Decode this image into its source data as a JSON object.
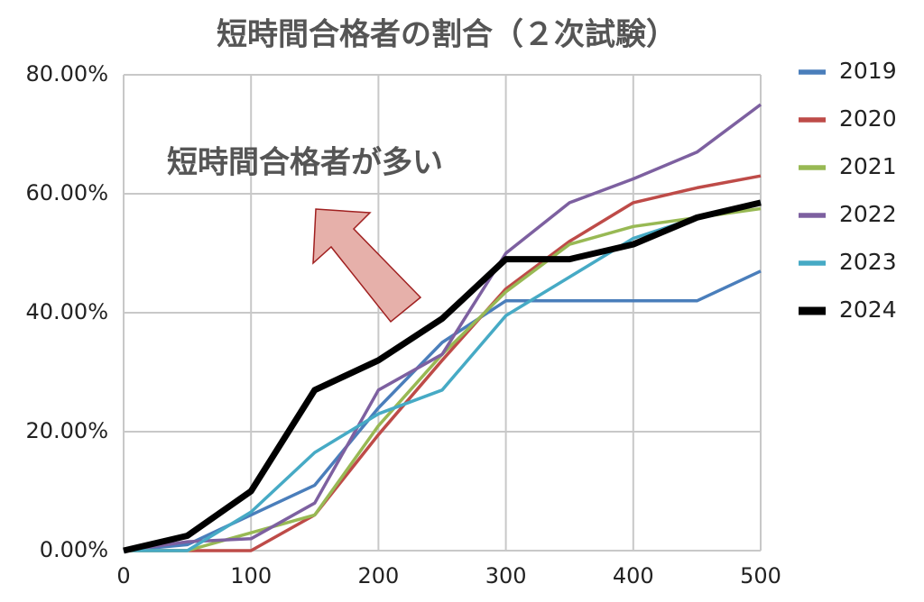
{
  "chart_data": {
    "type": "line",
    "title": "短時間合格者の割合（２次試験）",
    "annotation": "短時間合格者が多い",
    "x": [
      0,
      50,
      100,
      150,
      200,
      250,
      300,
      350,
      400,
      450,
      500
    ],
    "xlim": [
      0,
      500
    ],
    "xticks": [
      0,
      100,
      200,
      300,
      400,
      500
    ],
    "ylim": [
      0,
      80
    ],
    "yticks": [
      {
        "value": 0,
        "label": "0.00%"
      },
      {
        "value": 20,
        "label": "20.00%"
      },
      {
        "value": 40,
        "label": "40.00%"
      },
      {
        "value": 60,
        "label": "60.00%"
      },
      {
        "value": 80,
        "label": "80.00%"
      }
    ],
    "grid": true,
    "legend": "right",
    "series": [
      {
        "name": "2019",
        "color": "#4a7ebb",
        "values": [
          0,
          1,
          6,
          11,
          24,
          35,
          42,
          42,
          42,
          42,
          47
        ]
      },
      {
        "name": "2020",
        "color": "#be4b48",
        "values": [
          0,
          0,
          0,
          6,
          19.5,
          32,
          44,
          52,
          58.5,
          61,
          63
        ]
      },
      {
        "name": "2021",
        "color": "#98b954",
        "values": [
          0,
          0,
          3,
          6,
          21,
          33,
          43.5,
          51.5,
          54.5,
          56,
          57.5
        ]
      },
      {
        "name": "2022",
        "color": "#7d60a0",
        "values": [
          0,
          1.5,
          2,
          8,
          27,
          33,
          50,
          58.5,
          62.5,
          67,
          75
        ]
      },
      {
        "name": "2023",
        "color": "#46aac5",
        "values": [
          0,
          0,
          6.5,
          16.5,
          23,
          27,
          39.5,
          46,
          52.5,
          56,
          58.5
        ]
      },
      {
        "name": "2024",
        "color": "#000000",
        "values": [
          0,
          2.5,
          10,
          27,
          32,
          39,
          49,
          49,
          51.5,
          56,
          58.5
        ]
      }
    ]
  }
}
